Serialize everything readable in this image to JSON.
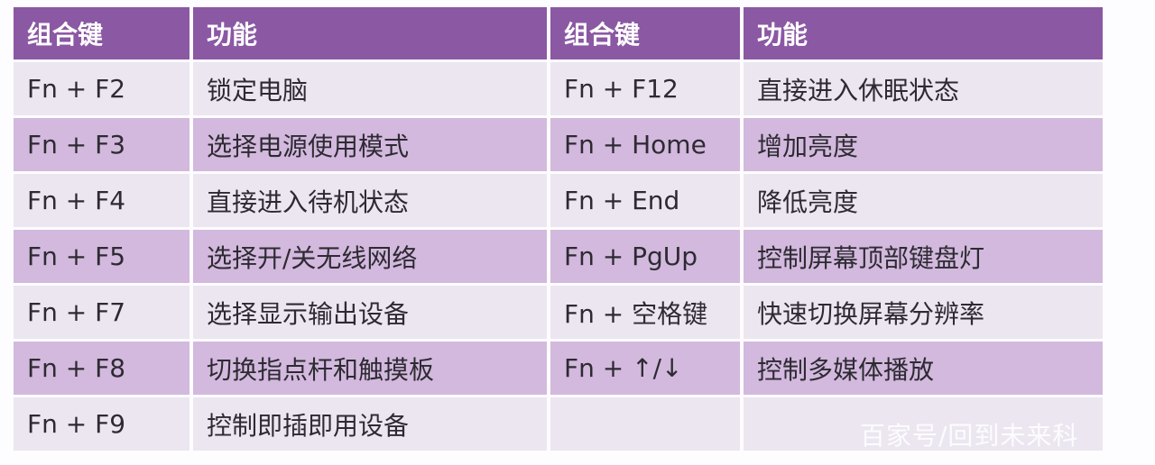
{
  "headers": [
    "组合键",
    "功能",
    "组合键",
    "功能"
  ],
  "rows": [
    {
      "key_left": "Fn + F2",
      "func_left": "锁定电脑",
      "key_right": "Fn + F12",
      "func_right": "直接进入休眠状态"
    },
    {
      "key_left": "Fn + F3",
      "func_left": "选择电源使用模式",
      "key_right": "Fn + Home",
      "func_right": "增加亮度"
    },
    {
      "key_left": "Fn + F4",
      "func_left": "直接进入待机状态",
      "key_right": "Fn + End",
      "func_right": "降低亮度"
    },
    {
      "key_left": "Fn + F5",
      "func_left": "选择开/关无线网络",
      "key_right": "Fn + PgUp",
      "func_right": "控制屏幕顶部键盘灯"
    },
    {
      "key_left": "Fn + F7",
      "func_left": "选择显示输出设备",
      "key_right": "Fn + 空格键",
      "func_right": "快速切换屏幕分辨率"
    },
    {
      "key_left": "Fn + F8",
      "func_left": "切换指点杆和触摸板",
      "key_right": "Fn + ↑/↓",
      "func_right": "控制多媒体播放"
    },
    {
      "key_left": "Fn + F9",
      "func_left": "控制即插即用设备",
      "key_right": "",
      "func_right": ""
    }
  ],
  "watermark": "百家号/回到未来科",
  "colors": {
    "header": "#8b58a4",
    "row_light": "#ece6f1",
    "row_dark": "#d2b9dd"
  }
}
